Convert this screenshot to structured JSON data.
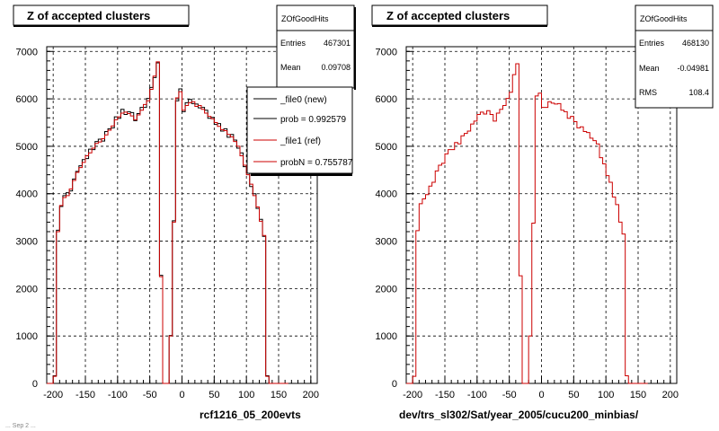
{
  "chart_data": [
    {
      "type": "histogram",
      "title": "Z of accepted clusters",
      "xlabel": "rcf1216_05_200evts",
      "ylabel": "",
      "xlim": [
        -210,
        210
      ],
      "ylim": [
        0,
        7100
      ],
      "grid": true,
      "x_ticks": [
        "-200",
        "-150",
        "-100",
        "-50",
        "0",
        "50",
        "100",
        "150",
        "200"
      ],
      "y_ticks": [
        "0",
        "1000",
        "2000",
        "3000",
        "4000",
        "5000",
        "6000",
        "7000"
      ],
      "stats": {
        "name": "ZOfGoodHits",
        "rows": [
          {
            "label": "Entries",
            "value": "467301"
          },
          {
            "label": "Mean",
            "value": "0.09708"
          }
        ]
      },
      "legend": {
        "placement": "top-right",
        "entries": [
          {
            "label": "_file0 (new)",
            "color": "#000000"
          },
          {
            "label": "prob = 0.992579",
            "color": "#000000"
          },
          {
            "label": "_file1 (ref)",
            "color": "#cc0000"
          },
          {
            "label": "probN = 0.755787",
            "color": "#cc0000"
          }
        ]
      },
      "series": [
        {
          "name": "_file0 (new)",
          "color": "#000000"
        },
        {
          "name": "_file1 (ref)",
          "color": "#cc0000"
        }
      ]
    },
    {
      "type": "histogram",
      "title": "Z of accepted clusters",
      "xlabel": "dev/trs_sl302/Sat/year_2005/cucu200_minbias/",
      "ylabel": "",
      "xlim": [
        -210,
        210
      ],
      "ylim": [
        0,
        7100
      ],
      "grid": true,
      "x_ticks": [
        "-200",
        "-150",
        "-100",
        "-50",
        "0",
        "50",
        "100",
        "150",
        "200"
      ],
      "y_ticks": [
        "0",
        "1000",
        "2000",
        "3000",
        "4000",
        "5000",
        "6000",
        "7000"
      ],
      "stats": {
        "name": "ZOfGoodHits",
        "rows": [
          {
            "label": "Entries",
            "value": "468130"
          },
          {
            "label": "Mean",
            "value": "-0.04981"
          },
          {
            "label": "RMS",
            "value": "108.4"
          }
        ]
      },
      "series": [
        {
          "name": "",
          "color": "#cc0000"
        }
      ]
    }
  ],
  "shared_distribution": {
    "bin_width": 5,
    "x_start": -210,
    "values": [
      0,
      0,
      150,
      3200,
      3750,
      3920,
      3960,
      4100,
      4280,
      4450,
      4550,
      4660,
      4800,
      4860,
      4960,
      5060,
      5090,
      5160,
      5240,
      5340,
      5430,
      5560,
      5620,
      5700,
      5720,
      5690,
      5640,
      5560,
      5660,
      5760,
      5880,
      5960,
      6200,
      6480,
      6780,
      2250,
      0,
      0,
      1000,
      3400,
      6020,
      6150,
      5760,
      5860,
      5920,
      5940,
      5840,
      5860,
      5780,
      5700,
      5630,
      5580,
      5500,
      5420,
      5350,
      5330,
      5250,
      5200,
      5100,
      5000,
      4800,
      4600,
      4400,
      4200,
      3960,
      3720,
      3420,
      3120,
      150,
      0,
      0,
      0,
      0,
      0,
      0
    ],
    "new_offsets": [
      0,
      0,
      10,
      30,
      -20,
      40,
      60,
      -40,
      30,
      20,
      40,
      60,
      -60,
      80,
      -30,
      40,
      60,
      -50,
      70,
      30,
      -40,
      60,
      -30,
      80,
      -50,
      40,
      70,
      -20,
      30,
      60,
      -60,
      50,
      40,
      -30,
      -20,
      30,
      0,
      0,
      10,
      30,
      -60,
      60,
      -30,
      60,
      70,
      -40,
      50,
      -50,
      40,
      60,
      -40,
      30,
      -40,
      60,
      -30,
      40,
      -60,
      50,
      30,
      -40,
      60,
      -30,
      40,
      -50,
      40,
      -30,
      40,
      -20,
      10,
      0,
      0,
      0,
      0,
      0,
      0
    ],
    "right_offsets": [
      0,
      0,
      0,
      20,
      40,
      -30,
      20,
      60,
      -40,
      30,
      50,
      -20,
      40,
      70,
      -30,
      20,
      -40,
      60,
      30,
      -20,
      40,
      -30,
      50,
      20,
      -40,
      60,
      30,
      -30,
      40,
      20,
      -20,
      50,
      -60,
      30,
      -40,
      20,
      0,
      0,
      0,
      -20,
      40,
      -30,
      60,
      -40,
      20,
      -30,
      50,
      40,
      -20,
      30,
      -40,
      50,
      20,
      -30,
      60,
      -20,
      40,
      -30,
      20,
      50,
      -40,
      30,
      -20,
      40,
      -30,
      50,
      -20,
      30,
      10,
      0,
      0,
      0,
      0,
      0,
      0
    ]
  },
  "footer": "... Sep 2 ..."
}
